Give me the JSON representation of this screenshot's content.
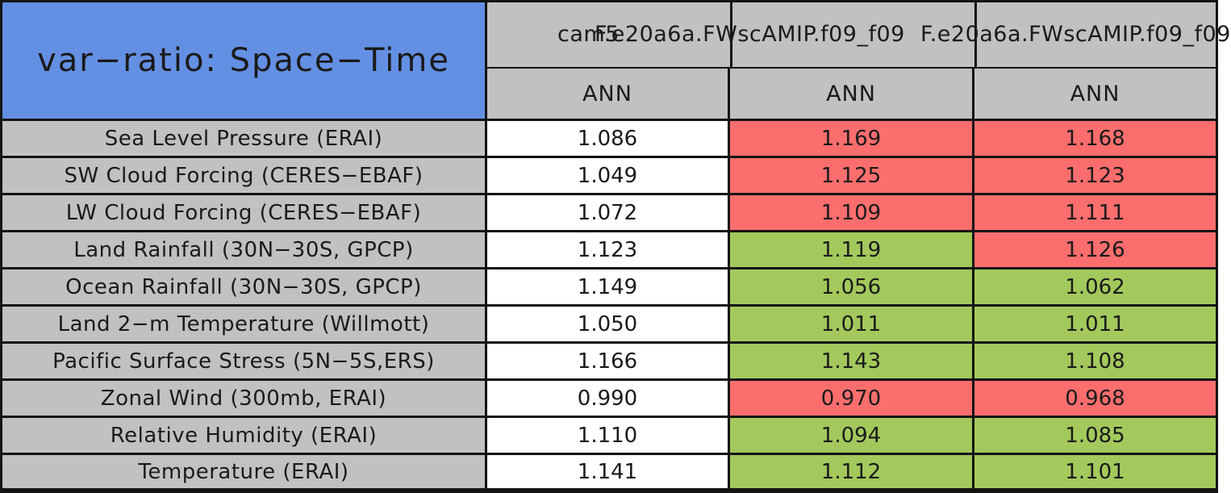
{
  "colors": {
    "header_blue": "#6490E4",
    "cell_gray": "#C1C1C1",
    "border_black": "#141414",
    "reference": "#FFFFFF",
    "worse": "#FC6E6E",
    "better": "#A3C95C"
  },
  "header": {
    "title": "var−ratio: Space−Time",
    "season": "ANN",
    "case_names": [
      "cam5",
      "F.e20a6a.FWscAMIP.f09_f09",
      "F.e20a6a.FWscAMIP.f09_f09"
    ]
  },
  "chart_data": {
    "type": "table",
    "title": "var−ratio: Space−Time",
    "columns": [
      {
        "name": "cam5",
        "season": "ANN"
      },
      {
        "name": "F.e20a6a.FWscAMIP.f09_f09",
        "season": "ANN"
      },
      {
        "name": "F.e20a6a.FWscAMIP.f09_f09",
        "season": "ANN"
      }
    ],
    "rows": [
      {
        "label": "Sea Level Pressure (ERAI)",
        "values": [
          "1.086",
          "1.169",
          "1.168"
        ],
        "flags": [
          "reference",
          "worse",
          "worse"
        ]
      },
      {
        "label": "SW Cloud Forcing (CERES−EBAF)",
        "values": [
          "1.049",
          "1.125",
          "1.123"
        ],
        "flags": [
          "reference",
          "worse",
          "worse"
        ]
      },
      {
        "label": "LW Cloud Forcing (CERES−EBAF)",
        "values": [
          "1.072",
          "1.109",
          "1.111"
        ],
        "flags": [
          "reference",
          "worse",
          "worse"
        ]
      },
      {
        "label": "Land Rainfall (30N−30S, GPCP)",
        "values": [
          "1.123",
          "1.119",
          "1.126"
        ],
        "flags": [
          "reference",
          "better",
          "worse"
        ]
      },
      {
        "label": "Ocean Rainfall (30N−30S, GPCP)",
        "values": [
          "1.149",
          "1.056",
          "1.062"
        ],
        "flags": [
          "reference",
          "better",
          "better"
        ]
      },
      {
        "label": "Land 2−m Temperature (Willmott)",
        "values": [
          "1.050",
          "1.011",
          "1.011"
        ],
        "flags": [
          "reference",
          "better",
          "better"
        ]
      },
      {
        "label": "Pacific Surface Stress (5N−5S,ERS)",
        "values": [
          "1.166",
          "1.143",
          "1.108"
        ],
        "flags": [
          "reference",
          "better",
          "better"
        ]
      },
      {
        "label": "Zonal Wind (300mb, ERAI)",
        "values": [
          "0.990",
          "0.970",
          "0.968"
        ],
        "flags": [
          "reference",
          "worse",
          "worse"
        ]
      },
      {
        "label": "Relative Humidity (ERAI)",
        "values": [
          "1.110",
          "1.094",
          "1.085"
        ],
        "flags": [
          "reference",
          "better",
          "better"
        ]
      },
      {
        "label": "Temperature (ERAI)",
        "values": [
          "1.141",
          "1.112",
          "1.101"
        ],
        "flags": [
          "reference",
          "better",
          "better"
        ]
      }
    ]
  }
}
